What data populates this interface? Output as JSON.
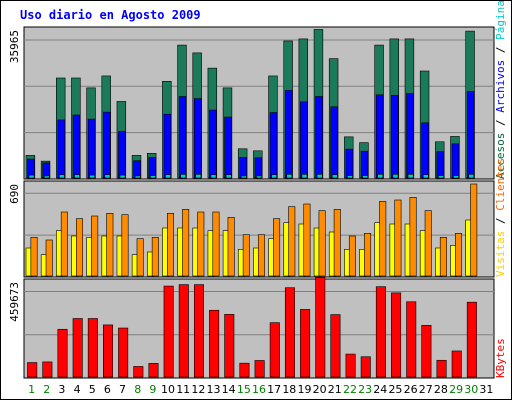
{
  "chart_data": {
    "title": "Uso diario en Agosto 2009",
    "type": "bar",
    "days": [
      "1",
      "2",
      "3",
      "4",
      "5",
      "6",
      "7",
      "8",
      "9",
      "10",
      "11",
      "12",
      "13",
      "14",
      "15",
      "16",
      "17",
      "18",
      "19",
      "20",
      "21",
      "22",
      "23",
      "24",
      "25",
      "26",
      "27",
      "28",
      "29",
      "30",
      "31"
    ],
    "weekend_days": [
      "1",
      "2",
      "8",
      "9",
      "15",
      "16",
      "22",
      "23",
      "29",
      "30"
    ],
    "panels": [
      {
        "name": "top",
        "max_label": "35965",
        "ymax": 35965,
        "legend": [
          {
            "text": "Accesos",
            "color": "#006633"
          },
          {
            "text": "Archivos",
            "color": "#0000ff"
          },
          {
            "text": "Páginas",
            "color": "#00cccc"
          }
        ],
        "series": [
          {
            "name": "Accesos",
            "color": "#1a7a5a",
            "values": [
              5500,
              4100,
              24300,
              24300,
              21900,
              24800,
              18600,
              5500,
              6000,
              23500,
              32300,
              30400,
              26700,
              21900,
              7100,
              6600,
              24800,
              33300,
              33800,
              36100,
              29000,
              10000,
              8600,
              32300,
              33800,
              33800,
              26000,
              8800,
              10100,
              35700
            ]
          },
          {
            "name": "Archivos",
            "color": "#0000ff",
            "values": [
              4600,
              3700,
              14100,
              15300,
              14300,
              16000,
              11300,
              4200,
              5000,
              15500,
              19800,
              19300,
              16500,
              14800,
              5000,
              4900,
              15900,
              21300,
              18500,
              19800,
              17300,
              7000,
              6500,
              20200,
              20100,
              20500,
              13400,
              6400,
              8300,
              21000
            ]
          },
          {
            "name": "Páginas",
            "color": "#00cccc",
            "values": [
              700,
              500,
              800,
              800,
              700,
              800,
              700,
              500,
              600,
              800,
              900,
              900,
              800,
              800,
              500,
              500,
              800,
              900,
              900,
              900,
              800,
              600,
              600,
              900,
              900,
              900,
              800,
              600,
              600,
              900
            ]
          }
        ]
      },
      {
        "name": "middle",
        "max_label": "690",
        "ymax": 690,
        "legend": [
          {
            "text": "Visitas",
            "color": "#ffcc00"
          },
          {
            "text": "Clientes",
            "color": "#ff6600"
          }
        ],
        "series": [
          {
            "name": "Visitas",
            "color": "#ffff00",
            "values": [
              210,
              160,
              340,
              300,
              290,
              300,
              300,
              160,
              180,
              360,
              360,
              360,
              340,
              340,
              200,
              210,
              280,
              400,
              390,
              360,
              330,
              200,
              200,
              400,
              390,
              390,
              340,
              210,
              230,
              420
            ]
          },
          {
            "name": "Clientes",
            "color": "#ff8c00",
            "values": [
              290,
              270,
              480,
              430,
              450,
              470,
              460,
              280,
              290,
              470,
              500,
              480,
              480,
              440,
              310,
              310,
              430,
              520,
              540,
              490,
              500,
              300,
              320,
              560,
              570,
              590,
              490,
              290,
              320,
              690
            ]
          }
        ]
      },
      {
        "name": "bottom",
        "max_label": "459673",
        "ymax": 459673,
        "legend": [
          {
            "text": "KBytes",
            "color": "#ff0000"
          }
        ],
        "series": [
          {
            "name": "KBytes",
            "color": "#ff0000",
            "values": [
              70000,
              73000,
              231000,
              283000,
              283000,
              252000,
              237000,
              51000,
              66000,
              440000,
              447000,
              447000,
              323000,
              303000,
              67000,
              80000,
              263000,
              432000,
              327000,
              482000,
              302000,
              111000,
              98000,
              437000,
              407000,
              364000,
              250000,
              81000,
              126000,
              362000
            ]
          }
        ]
      }
    ]
  }
}
